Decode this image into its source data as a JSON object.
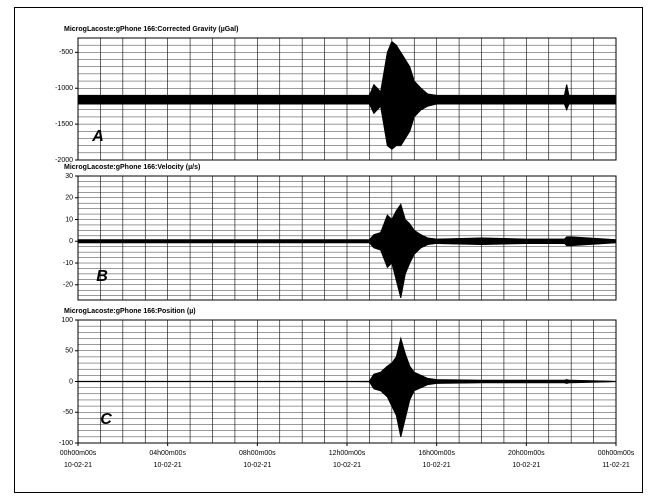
{
  "chart_data": [
    {
      "type": "band",
      "title": "MicrogLacoste:gPhone 166:Corrected Gravity (µGal)",
      "label": "A",
      "x": [
        0,
        2,
        4,
        6,
        8,
        10,
        12,
        13,
        13.2,
        13.5,
        13.8,
        14,
        14.2,
        14.4,
        14.6,
        14.8,
        15,
        15.3,
        15.6,
        16,
        18,
        20,
        21.7,
        21.8,
        21.9,
        22,
        24
      ],
      "upper": [
        -1100,
        -1100,
        -1100,
        -1100,
        -1100,
        -1100,
        -1100,
        -1100,
        -950,
        -1050,
        -500,
        -350,
        -400,
        -500,
        -600,
        -700,
        -900,
        -1000,
        -1080,
        -1100,
        -1100,
        -1100,
        -1100,
        -950,
        -1100,
        -1100,
        -1100
      ],
      "lower": [
        -1220,
        -1220,
        -1220,
        -1220,
        -1220,
        -1220,
        -1220,
        -1220,
        -1350,
        -1250,
        -1800,
        -1850,
        -1800,
        -1800,
        -1700,
        -1600,
        -1400,
        -1300,
        -1250,
        -1220,
        -1220,
        -1220,
        -1220,
        -1300,
        -1220,
        -1220,
        -1220
      ],
      "color": "#000000",
      "xlim": [
        0,
        24
      ],
      "xgrid_step": 1,
      "ylim": [
        -2000,
        -300
      ],
      "yticks": [
        -500,
        -1000,
        -1500,
        -2000
      ],
      "ygrid_step": 100,
      "grid": true
    },
    {
      "type": "band",
      "title": "MicrogLacoste:gPhone 166:Velocity (µ/s)",
      "label": "B",
      "x": [
        0,
        2,
        4,
        6,
        8,
        10,
        12,
        13,
        13.2,
        13.5,
        13.8,
        14,
        14.2,
        14.4,
        14.6,
        14.8,
        15,
        15.3,
        15.6,
        16,
        18,
        20,
        21.7,
        21.8,
        21.9,
        22,
        24
      ],
      "upper": [
        0.7,
        0.7,
        0.7,
        0.7,
        0.7,
        0.7,
        0.7,
        0.7,
        3,
        4,
        12,
        10,
        14,
        17,
        10,
        8,
        5,
        3,
        1.5,
        1,
        1.5,
        1,
        1,
        2,
        2,
        2,
        0.7
      ],
      "lower": [
        -0.7,
        -0.7,
        -0.7,
        -0.7,
        -0.7,
        -0.7,
        -0.7,
        -0.7,
        -3,
        -4,
        -12,
        -10,
        -18,
        -26,
        -15,
        -10,
        -6,
        -3,
        -1.5,
        -1,
        -1.5,
        -1,
        -1,
        -2,
        -2,
        -2,
        -0.7
      ],
      "color": "#000000",
      "xlim": [
        0,
        24
      ],
      "xgrid_step": 1,
      "ylim": [
        -27,
        30
      ],
      "yticks": [
        30,
        20,
        10,
        0,
        -10,
        -20
      ],
      "ygrid_step": 2.5,
      "grid": true
    },
    {
      "type": "band",
      "title": "MicrogLacoste:gPhone 166:Position (µ)",
      "label": "C",
      "x": [
        0,
        2,
        4,
        6,
        8,
        10,
        12,
        13,
        13.2,
        13.5,
        13.8,
        14,
        14.2,
        14.4,
        14.6,
        14.8,
        15,
        15.3,
        15.6,
        16,
        18,
        20,
        21.7,
        21.8,
        21.9,
        22,
        24
      ],
      "upper": [
        0.3,
        0.3,
        0.3,
        0.3,
        0.3,
        0.3,
        0.3,
        0.5,
        12,
        15,
        25,
        30,
        40,
        70,
        45,
        25,
        15,
        10,
        5,
        3,
        2,
        2,
        2,
        3,
        2,
        2,
        0.3
      ],
      "lower": [
        -0.3,
        -0.3,
        -0.3,
        -0.3,
        -0.3,
        -0.3,
        -0.3,
        -0.5,
        -12,
        -15,
        -25,
        -40,
        -55,
        -90,
        -60,
        -30,
        -15,
        -10,
        -5,
        -3,
        -2,
        -2,
        -2,
        -3,
        -2,
        -2,
        -0.3
      ],
      "color": "#000000",
      "xlim": [
        0,
        24
      ],
      "xgrid_step": 1,
      "ylim": [
        -100,
        100
      ],
      "yticks": [
        100,
        50,
        0,
        -50,
        -100
      ],
      "ygrid_step": 10,
      "grid": true,
      "xticks": [
        {
          "value": 0,
          "label": "00h00m00s"
        },
        {
          "value": 4,
          "label": "04h00m00s"
        },
        {
          "value": 8,
          "label": "08h00m00s"
        },
        {
          "value": 12,
          "label": "12h00m00s"
        },
        {
          "value": 16,
          "label": "16h00m00s"
        },
        {
          "value": 20,
          "label": "20h00m00s"
        },
        {
          "value": 24,
          "label": "00h00m00s"
        }
      ],
      "xtick_dates": [
        "10-02-21",
        "10-02-21",
        "10-02-21",
        "10-02-21",
        "10-02-21",
        "10-02-21",
        "11-02-21"
      ]
    }
  ]
}
